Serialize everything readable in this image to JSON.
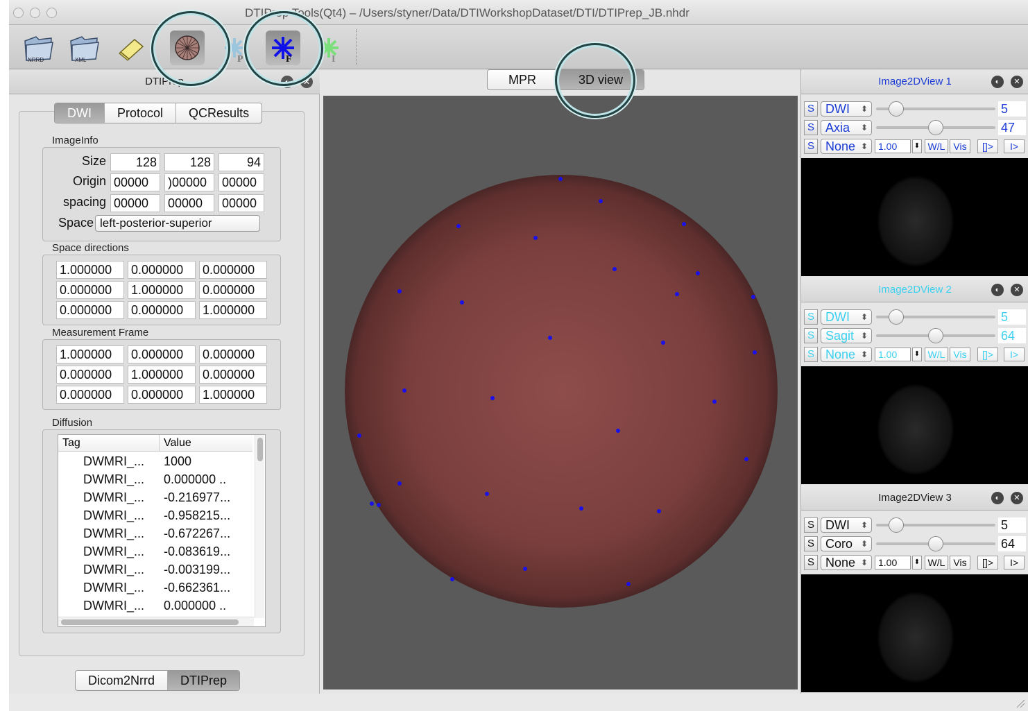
{
  "window": {
    "title": "DTIPrep Tools(Qt4) – /Users/styner/Data/DTIWorkshopDataset/DTI/DTIPrep_JB.nhdr"
  },
  "toolbar": {
    "items": [
      {
        "name": "open-nrrd",
        "label": "NRRD"
      },
      {
        "name": "open-xml",
        "label": "XML"
      },
      {
        "name": "edit"
      },
      {
        "name": "sphere-view"
      },
      {
        "name": "protocol",
        "label": "P"
      },
      {
        "name": "fibers",
        "label": "F"
      },
      {
        "name": "image",
        "label": "I"
      }
    ]
  },
  "dock": {
    "title": "DTIPrep",
    "tabs": [
      "DWI",
      "Protocol",
      "QCResults"
    ],
    "active_tab": "DWI",
    "image_info": {
      "label": "ImageInfo",
      "size_label": "Size",
      "size": [
        "128",
        "128",
        "94"
      ],
      "origin_label": "Origin",
      "origin": [
        "00000",
        ")00000",
        "00000"
      ],
      "spacing_label": "spacing",
      "spacing": [
        "00000",
        "00000",
        "00000"
      ],
      "space_label": "Space",
      "space": "left-posterior-superior"
    },
    "space_directions": {
      "label": "Space directions",
      "rows": [
        [
          "1.000000",
          "0.000000",
          "0.000000"
        ],
        [
          "0.000000",
          "1.000000",
          "0.000000"
        ],
        [
          "0.000000",
          "0.000000",
          "1.000000"
        ]
      ]
    },
    "measurement_frame": {
      "label": "Measurement Frame",
      "rows": [
        [
          "1.000000",
          "0.000000",
          "0.000000"
        ],
        [
          "0.000000",
          "1.000000",
          "0.000000"
        ],
        [
          "0.000000",
          "0.000000",
          "1.000000"
        ]
      ]
    },
    "diffusion": {
      "label": "Diffusion",
      "columns": [
        "Tag",
        "Value"
      ],
      "rows": [
        {
          "tag": "DWMRI_...",
          "value": "1000"
        },
        {
          "tag": "DWMRI_...",
          "value": "0.000000 .."
        },
        {
          "tag": "DWMRI_...",
          "value": "-0.216977..."
        },
        {
          "tag": "DWMRI_...",
          "value": "-0.958215..."
        },
        {
          "tag": "DWMRI_...",
          "value": "-0.672267..."
        },
        {
          "tag": "DWMRI_...",
          "value": "-0.083619..."
        },
        {
          "tag": "DWMRI_...",
          "value": "-0.003199..."
        },
        {
          "tag": "DWMRI_...",
          "value": "-0.662361..."
        },
        {
          "tag": "DWMRI_...",
          "value": "0.000000 .."
        }
      ]
    },
    "bottom_tabs": [
      "Dicom2Nrrd",
      "DTIPrep"
    ],
    "bottom_active": "DTIPrep"
  },
  "center": {
    "tabs": [
      "MPR",
      "3D view"
    ],
    "active_tab": "3D view",
    "sphere_color": "#8a4a48",
    "point_color": "#1a10e8"
  },
  "views": [
    {
      "title": "Image2DView 1",
      "title_color": "#1a3cd4",
      "text_color": "#1a3cd4",
      "rows": [
        {
          "s": "S",
          "combo": "DWI",
          "value": "5",
          "level": 0.12
        },
        {
          "s": "S",
          "combo": "Axia",
          "value": "47",
          "level": 0.5
        }
      ],
      "window": "1.00",
      "buttons": [
        "W/L",
        "Vis",
        "[]>",
        "I>"
      ],
      "mode": "None"
    },
    {
      "title": "Image2DView 2",
      "title_color": "#3cd0f0",
      "text_color": "#3cd0f0",
      "rows": [
        {
          "s": "S",
          "combo": "DWI",
          "value": "5",
          "level": 0.12
        },
        {
          "s": "S",
          "combo": "Sagit",
          "value": "64",
          "level": 0.5
        }
      ],
      "window": "1.00",
      "buttons": [
        "W/L",
        "Vis",
        "[]>",
        "I>"
      ],
      "mode": "None"
    },
    {
      "title": "Image2DView 3",
      "title_color": "#222222",
      "text_color": "#111111",
      "rows": [
        {
          "s": "S",
          "combo": "DWI",
          "value": "5",
          "level": 0.12
        },
        {
          "s": "S",
          "combo": "Coro",
          "value": "64",
          "level": 0.5
        }
      ],
      "window": "1.00",
      "buttons": [
        "W/L",
        "Vis",
        "[]>",
        "I>"
      ],
      "mode": "None"
    }
  ]
}
